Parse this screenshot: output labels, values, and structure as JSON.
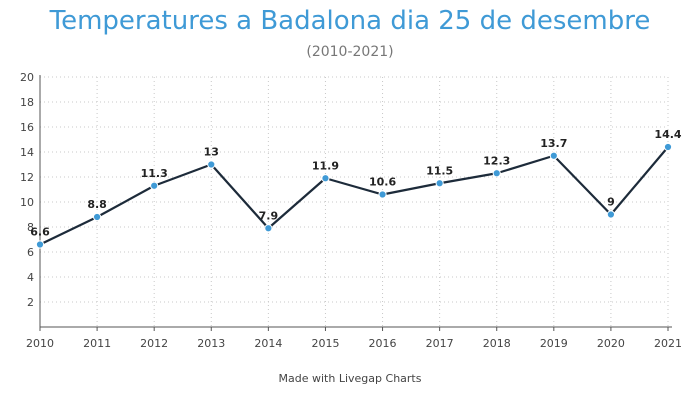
{
  "chart_data": {
    "type": "line",
    "title": "Temperatures a Badalona dia 25 de desembre",
    "subtitle": "(2010-2021)",
    "xlabel": "",
    "ylabel": "",
    "categories": [
      "2010",
      "2011",
      "2012",
      "2013",
      "2014",
      "2015",
      "2016",
      "2017",
      "2018",
      "2019",
      "2020",
      "2021"
    ],
    "series": [
      {
        "values": [
          6.6,
          8.8,
          11.3,
          13,
          7.9,
          11.9,
          10.6,
          11.5,
          12.3,
          13.7,
          9,
          14.4
        ],
        "data_labels": [
          "6.6",
          "8.8",
          "11.3",
          "13",
          "7.9",
          "11.9",
          "10.6",
          "11.5",
          "12.3",
          "13.7",
          "9",
          "14.4"
        ]
      }
    ],
    "y_ticks": [
      "2",
      "4",
      "6",
      "8",
      "10",
      "12",
      "14",
      "16",
      "18",
      "20"
    ],
    "ylim": [
      0,
      20
    ],
    "grid": true,
    "legend": "none",
    "colors": {
      "title": "#3f9ad6",
      "line": "#1d2b3a",
      "marker": "#3f9ad6",
      "grid": "#c8c8c8",
      "axis": "#555555"
    }
  },
  "footer": {
    "credit": "Made with Livegap Charts"
  }
}
